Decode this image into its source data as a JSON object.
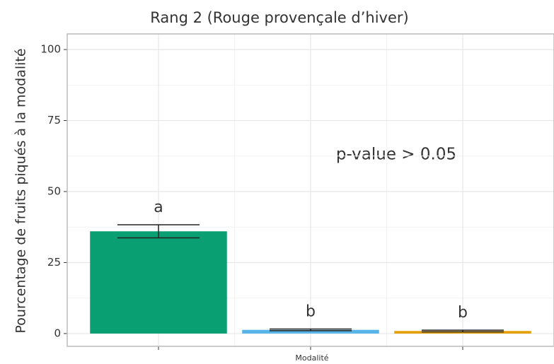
{
  "chart_data": {
    "type": "bar",
    "title": "Rang 2 (Rouge provençale d’hiver)",
    "y_label": "Pourcentage de fruits piqués à la modalité",
    "x_label": "Modalité",
    "annotation": "p-value > 0.05",
    "categories": [
      null,
      null,
      null
    ],
    "values": [
      36,
      1.3,
      0.9
    ],
    "errors": [
      2.3,
      0.3,
      0.3
    ],
    "group_letters": [
      "a",
      "b",
      "b"
    ],
    "colors": [
      "#0a9e73",
      "#56b4e9",
      "#e69f00"
    ],
    "ylim": [
      -4.5,
      105.5
    ],
    "yticks": [
      0,
      25,
      50,
      75,
      100
    ],
    "grid": true
  }
}
